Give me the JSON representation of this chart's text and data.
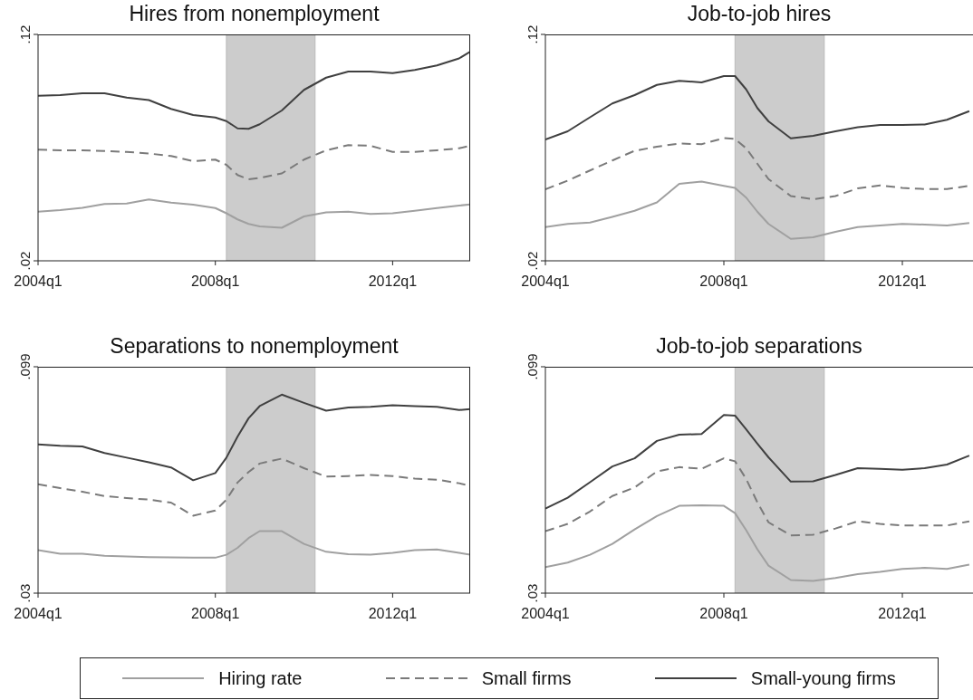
{
  "chart_data": [
    {
      "type": "line",
      "title": "Hires from nonemployment",
      "x": [
        "2004-01",
        "2004-07",
        "2005-01",
        "2005-07",
        "2006-01",
        "2006-07",
        "2007-01",
        "2007-07",
        "2008-01",
        "2008-04",
        "2008-07",
        "2008-10",
        "2009-01",
        "2009-07",
        "2010-01",
        "2010-07",
        "2011-01",
        "2011-07",
        "2012-01",
        "2012-07",
        "2013-01",
        "2013-07",
        "2013-10"
      ],
      "xlim": [
        "2004-01",
        "2013-10"
      ],
      "xticks": [
        {
          "value": "2004-01",
          "label": "2004q1"
        },
        {
          "value": "2008-01",
          "label": "2008q1"
        },
        {
          "value": "2012-01",
          "label": "2012q1"
        }
      ],
      "ylim": [
        0.02,
        0.12
      ],
      "yticks": [
        {
          "value": 0.02,
          "label": ".02"
        },
        {
          "value": 0.12,
          "label": ".12"
        }
      ],
      "legend": "bottom",
      "bands": [
        {
          "axis": "x",
          "from": "2008-04",
          "to": "2010-04",
          "color": "#cccccc"
        }
      ],
      "series": [
        {
          "name": "Hiring rate",
          "color": "#a0a0a0",
          "line_style": "solid",
          "values": [
            0.0417,
            0.0424,
            0.0434,
            0.0451,
            0.0453,
            0.0471,
            0.0457,
            0.0448,
            0.0433,
            0.041,
            0.0383,
            0.0363,
            0.0352,
            0.0346,
            0.0396,
            0.0414,
            0.0417,
            0.0407,
            0.041,
            0.0421,
            0.0433,
            0.0444,
            0.0449
          ]
        },
        {
          "name": "Small firms",
          "color": "#7a7a7a",
          "line_style": "dashed",
          "values": [
            0.0691,
            0.0688,
            0.0688,
            0.0685,
            0.0681,
            0.0674,
            0.0663,
            0.064,
            0.0647,
            0.0624,
            0.0579,
            0.056,
            0.0566,
            0.0586,
            0.0647,
            0.0688,
            0.0711,
            0.0708,
            0.0681,
            0.0681,
            0.0688,
            0.0697,
            0.0708
          ]
        },
        {
          "name": "Small-young firms",
          "color": "#404040",
          "line_style": "solid",
          "values": [
            0.0929,
            0.0932,
            0.094,
            0.094,
            0.0921,
            0.091,
            0.0871,
            0.0844,
            0.0833,
            0.0817,
            0.0785,
            0.0783,
            0.0803,
            0.0864,
            0.0955,
            0.1009,
            0.1036,
            0.1036,
            0.1029,
            0.1043,
            0.1063,
            0.1094,
            0.1124
          ]
        }
      ]
    },
    {
      "type": "line",
      "title": "Job-to-job hires",
      "x": [
        "2004-01",
        "2004-07",
        "2005-01",
        "2005-07",
        "2006-01",
        "2006-07",
        "2007-01",
        "2007-07",
        "2008-01",
        "2008-04",
        "2008-07",
        "2008-10",
        "2009-01",
        "2009-07",
        "2010-01",
        "2010-07",
        "2011-01",
        "2011-07",
        "2012-01",
        "2012-07",
        "2013-01",
        "2013-07"
      ],
      "xlim": [
        "2004-01",
        "2013-08"
      ],
      "xticks": [
        {
          "value": "2004-01",
          "label": "2004q1"
        },
        {
          "value": "2008-01",
          "label": "2008q1"
        },
        {
          "value": "2012-01",
          "label": "2012q1"
        }
      ],
      "ylim": [
        0.02,
        0.12
      ],
      "yticks": [
        {
          "value": 0.02,
          "label": ".02"
        },
        {
          "value": 0.12,
          "label": ".12"
        }
      ],
      "bands": [
        {
          "axis": "x",
          "from": "2008-04",
          "to": "2010-04",
          "color": "#cccccc"
        }
      ],
      "series": [
        {
          "color": "#a0a0a0",
          "line_style": "solid",
          "values": [
            0.0349,
            0.0363,
            0.0369,
            0.0394,
            0.0421,
            0.0458,
            0.054,
            0.055,
            0.0531,
            0.0522,
            0.0479,
            0.0417,
            0.0363,
            0.0297,
            0.0304,
            0.0328,
            0.0349,
            0.0356,
            0.0363,
            0.036,
            0.0356,
            0.0367
          ]
        },
        {
          "color": "#7a7a7a",
          "line_style": "dashed",
          "values": [
            0.0516,
            0.0554,
            0.0599,
            0.0643,
            0.0686,
            0.0704,
            0.0718,
            0.0715,
            0.0742,
            0.0738,
            0.0697,
            0.0629,
            0.0561,
            0.0486,
            0.0472,
            0.0486,
            0.052,
            0.0533,
            0.0522,
            0.0517,
            0.0517,
            0.0531
          ]
        },
        {
          "color": "#404040",
          "line_style": "solid",
          "values": [
            0.0736,
            0.0772,
            0.0834,
            0.0895,
            0.0932,
            0.0977,
            0.0995,
            0.0988,
            0.1016,
            0.1016,
            0.0957,
            0.0875,
            0.0816,
            0.0741,
            0.0752,
            0.0772,
            0.079,
            0.08,
            0.08,
            0.0802,
            0.0823,
            0.0861
          ]
        }
      ]
    },
    {
      "type": "line",
      "title": "Separations to nonemployment",
      "x": [
        "2004-01",
        "2004-07",
        "2005-01",
        "2005-07",
        "2006-01",
        "2006-07",
        "2007-01",
        "2007-07",
        "2008-01",
        "2008-04",
        "2008-07",
        "2008-10",
        "2009-01",
        "2009-07",
        "2010-01",
        "2010-07",
        "2011-01",
        "2011-07",
        "2012-01",
        "2012-07",
        "2013-01",
        "2013-07",
        "2013-10"
      ],
      "xlim": [
        "2004-01",
        "2013-10"
      ],
      "xticks": [
        {
          "value": "2004-01",
          "label": "2004q1"
        },
        {
          "value": "2008-01",
          "label": "2008q1"
        },
        {
          "value": "2012-01",
          "label": "2012q1"
        }
      ],
      "ylim": [
        0.03,
        0.099
      ],
      "yticks": [
        {
          "value": 0.03,
          "label": ".03"
        },
        {
          "value": 0.099,
          "label": ".099"
        }
      ],
      "bands": [
        {
          "axis": "x",
          "from": "2008-04",
          "to": "2010-04",
          "color": "#cccccc"
        }
      ],
      "series": [
        {
          "color": "#a0a0a0",
          "line_style": "solid",
          "values": [
            0.0431,
            0.042,
            0.042,
            0.0414,
            0.0412,
            0.041,
            0.0409,
            0.0408,
            0.0408,
            0.0417,
            0.0438,
            0.0468,
            0.0489,
            0.0489,
            0.045,
            0.0426,
            0.0419,
            0.0417,
            0.0423,
            0.0431,
            0.0433,
            0.0423,
            0.0417
          ]
        },
        {
          "color": "#7a7a7a",
          "line_style": "dashed",
          "values": [
            0.0632,
            0.062,
            0.0609,
            0.0596,
            0.059,
            0.0585,
            0.0576,
            0.0536,
            0.0552,
            0.0585,
            0.0637,
            0.0669,
            0.0695,
            0.071,
            0.0681,
            0.0655,
            0.0657,
            0.066,
            0.0657,
            0.0649,
            0.0646,
            0.0635,
            0.0627
          ]
        },
        {
          "color": "#404040",
          "line_style": "solid",
          "values": [
            0.0753,
            0.0749,
            0.0747,
            0.0727,
            0.0713,
            0.0699,
            0.0683,
            0.0644,
            0.0666,
            0.0713,
            0.0777,
            0.0833,
            0.087,
            0.0905,
            0.088,
            0.0856,
            0.0866,
            0.0868,
            0.0873,
            0.087,
            0.0868,
            0.0858,
            0.0861
          ]
        }
      ]
    },
    {
      "type": "line",
      "title": "Job-to-job separations",
      "x": [
        "2004-01",
        "2004-07",
        "2005-01",
        "2005-07",
        "2006-01",
        "2006-07",
        "2007-01",
        "2007-07",
        "2008-01",
        "2008-04",
        "2008-07",
        "2008-10",
        "2009-01",
        "2009-07",
        "2010-01",
        "2010-07",
        "2011-01",
        "2011-07",
        "2012-01",
        "2012-07",
        "2013-01",
        "2013-07"
      ],
      "xlim": [
        "2004-01",
        "2013-08"
      ],
      "xticks": [
        {
          "value": "2004-01",
          "label": "2004q1"
        },
        {
          "value": "2008-01",
          "label": "2008q1"
        },
        {
          "value": "2012-01",
          "label": "2012q1"
        }
      ],
      "ylim": [
        0.03,
        0.099
      ],
      "yticks": [
        {
          "value": 0.03,
          "label": ".03"
        },
        {
          "value": 0.099,
          "label": ".099"
        }
      ],
      "bands": [
        {
          "axis": "x",
          "from": "2008-04",
          "to": "2010-04",
          "color": "#cccccc"
        }
      ],
      "series": [
        {
          "color": "#a0a0a0",
          "line_style": "solid",
          "values": [
            0.0379,
            0.0393,
            0.0417,
            0.045,
            0.0494,
            0.0535,
            0.0566,
            0.0568,
            0.0566,
            0.0544,
            0.0492,
            0.0434,
            0.0384,
            0.034,
            0.0337,
            0.0346,
            0.0358,
            0.0365,
            0.0374,
            0.0377,
            0.0374,
            0.0387
          ]
        },
        {
          "color": "#7a7a7a",
          "line_style": "dashed",
          "values": [
            0.0489,
            0.0511,
            0.0549,
            0.0596,
            0.0622,
            0.0671,
            0.0684,
            0.0679,
            0.0711,
            0.0702,
            0.0648,
            0.0577,
            0.0516,
            0.0476,
            0.0478,
            0.0497,
            0.0519,
            0.0511,
            0.0506,
            0.0506,
            0.0506,
            0.0519
          ]
        },
        {
          "color": "#404040",
          "line_style": "solid",
          "values": [
            0.0558,
            0.0591,
            0.0638,
            0.0686,
            0.0711,
            0.0764,
            0.0783,
            0.0785,
            0.0843,
            0.0841,
            0.0799,
            0.0756,
            0.0714,
            0.064,
            0.0641,
            0.066,
            0.0681,
            0.0679,
            0.0676,
            0.0681,
            0.0692,
            0.0719
          ]
        }
      ]
    }
  ]
}
